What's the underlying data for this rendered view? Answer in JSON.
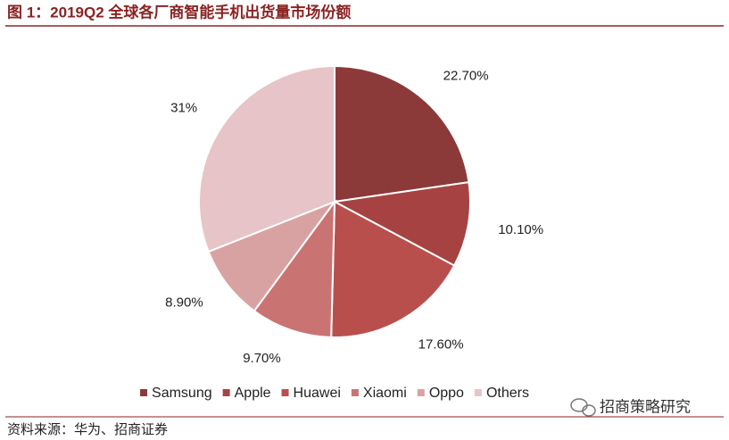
{
  "chart_data": {
    "type": "pie",
    "title": "图 1：2019Q2 全球各厂商智能手机出货量市场份额",
    "categories": [
      "Samsung",
      "Apple",
      "Huawei",
      "Xiaomi",
      "Oppo",
      "Others"
    ],
    "values": [
      22.7,
      10.1,
      17.6,
      9.7,
      8.9,
      31
    ],
    "value_labels": [
      "22.70%",
      "10.10%",
      "17.60%",
      "9.70%",
      "8.90%",
      "31%"
    ],
    "colors": [
      "#8b3a39",
      "#a64342",
      "#b94f4d",
      "#c97473",
      "#d9a2a2",
      "#e6c4c7"
    ],
    "legend": "bottom",
    "source": "资料来源：华为、招商证券",
    "watermark": "招商策略研究"
  }
}
